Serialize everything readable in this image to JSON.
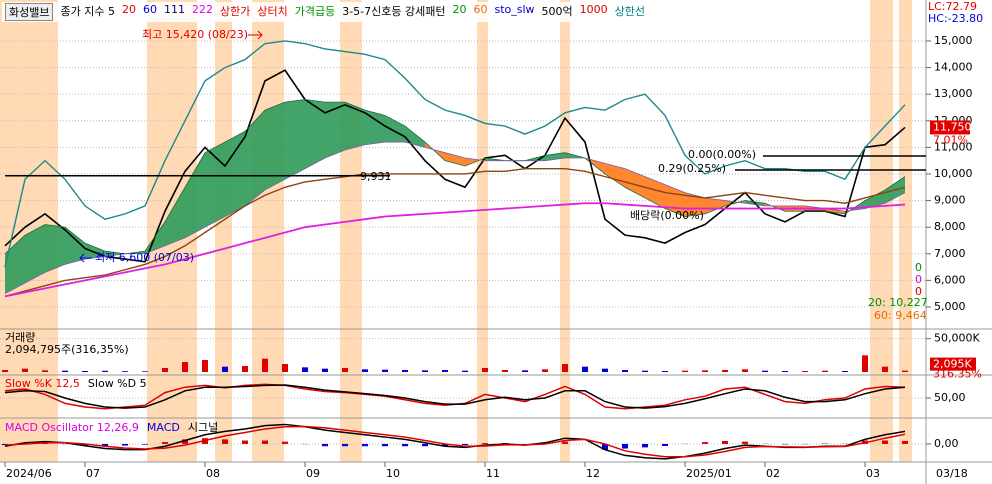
{
  "legend": [
    {
      "text": "화성밸브",
      "color": "#000000"
    },
    {
      "text": "종가 지수 5",
      "color": "#000000"
    },
    {
      "text": "20",
      "color": "#e00000"
    },
    {
      "text": "60",
      "color": "#0000e0"
    },
    {
      "text": "111",
      "color": "#00007f"
    },
    {
      "text": "222",
      "color": "#e000e0"
    },
    {
      "text": "상한가",
      "color": "#e00000"
    },
    {
      "text": "상터치",
      "color": "#e00000"
    },
    {
      "text": "가격급등",
      "color": "#009000"
    },
    {
      "text": "3-5-7신호등 강세패턴",
      "color": "#000000"
    },
    {
      "text": "20",
      "color": "#009000"
    },
    {
      "text": "60",
      "color": "#e07000"
    },
    {
      "text": "sto_slw",
      "color": "#0000c0"
    },
    {
      "text": "500억",
      "color": "#000000"
    },
    {
      "text": "1000",
      "color": "#e00000"
    },
    {
      "text": "상한선",
      "color": "#008080"
    }
  ],
  "chart_data": [
    {
      "type": "line",
      "categories": [
        "2024/06",
        null,
        null,
        null,
        "07",
        null,
        null,
        null,
        null,
        null,
        "08",
        null,
        null,
        null,
        null,
        "09",
        null,
        null,
        null,
        "10",
        null,
        null,
        null,
        null,
        "11",
        null,
        null,
        null,
        null,
        "12",
        null,
        null,
        null,
        null,
        "2025/01",
        null,
        null,
        null,
        "02",
        null,
        null,
        null,
        null,
        "03",
        null,
        null
      ],
      "last_date": "03/18",
      "ylim": [
        4210,
        16540
      ],
      "yticks": [
        {
          "value": 15000,
          "label": "15,000"
        },
        {
          "value": 14000,
          "label": "14,000"
        },
        {
          "value": 13000,
          "label": "13,000"
        },
        {
          "value": 12000,
          "label": "12,000"
        },
        {
          "value": 11000,
          "label": "11,000"
        },
        {
          "value": 10000,
          "label": "10,000"
        },
        {
          "value": 9000,
          "label": "9,000"
        },
        {
          "value": 8000,
          "label": "8,000"
        },
        {
          "value": 7000,
          "label": "7,000"
        },
        {
          "value": 6000,
          "label": "6,000"
        },
        {
          "value": 5000,
          "label": "5,000"
        }
      ],
      "grid": true,
      "cloud_colors": [
        "#2f9a5a",
        "#ff7a1a"
      ],
      "series": [
        {
          "color": "#000000",
          "values": [
            7300,
            8000,
            8500,
            7900,
            7200,
            6900,
            6800,
            6700,
            8600,
            10100,
            11000,
            10300,
            11400,
            13500,
            13900,
            12800,
            12300,
            12600,
            12300,
            11800,
            11400,
            10500,
            9800,
            9500,
            10600,
            10700,
            10200,
            10700,
            12100,
            11200,
            8300,
            7700,
            7600,
            7400,
            7800,
            8100,
            8700,
            9300,
            8500,
            8200,
            8600,
            8600,
            8400,
            11000,
            11100,
            11750
          ]
        },
        {
          "color": "#1e6b3a",
          "values": [
            7000,
            7700,
            8100,
            8000,
            7400,
            7100,
            7000,
            7100,
            8200,
            9500,
            10800,
            11200,
            11600,
            12400,
            12700,
            12800,
            12700,
            12700,
            12400,
            12200,
            11800,
            11200,
            10500,
            10300,
            10600,
            10500,
            10500,
            10700,
            10800,
            10600,
            10000,
            9500,
            9100,
            8700,
            8400,
            8500,
            8800,
            9000,
            8900,
            8600,
            8600,
            8600,
            8500,
            9000,
            9400,
            9900
          ]
        },
        {
          "color": "#7b5ea8",
          "values": [
            5500,
            5900,
            6300,
            6600,
            6800,
            6900,
            7000,
            7000,
            7300,
            7600,
            8000,
            8400,
            8800,
            9400,
            9800,
            10200,
            10600,
            10900,
            11100,
            11200,
            11200,
            11000,
            10800,
            10600,
            10500,
            10500,
            10500,
            10500,
            10600,
            10600,
            10400,
            10200,
            9900,
            9600,
            9300,
            9100,
            9000,
            8900,
            8800,
            8800,
            8800,
            8700,
            8600,
            8700,
            8900,
            9300
          ]
        },
        {
          "color": "#8b4513",
          "values": [
            5400,
            5600,
            5800,
            6000,
            6100,
            6200,
            6400,
            6600,
            6900,
            7300,
            7800,
            8300,
            8800,
            9200,
            9500,
            9700,
            9800,
            9900,
            10000,
            10000,
            10000,
            10000,
            10000,
            10000,
            10100,
            10100,
            10200,
            10200,
            10200,
            10100,
            9900,
            9700,
            9500,
            9300,
            9200,
            9100,
            9200,
            9300,
            9200,
            9100,
            9000,
            9000,
            8900,
            9100,
            9300,
            9500
          ]
        },
        {
          "color": "#e020e0",
          "values": [
            5400,
            5550,
            5700,
            5850,
            6000,
            6150,
            6300,
            6450,
            6600,
            6800,
            7000,
            7200,
            7400,
            7600,
            7800,
            8000,
            8100,
            8200,
            8300,
            8400,
            8450,
            8500,
            8550,
            8600,
            8650,
            8700,
            8750,
            8800,
            8850,
            8900,
            8900,
            8850,
            8800,
            8750,
            8700,
            8700,
            8700,
            8700,
            8700,
            8700,
            8700,
            8700,
            8700,
            8750,
            8800,
            8850
          ]
        },
        {
          "color": "#1a8a8a",
          "values": [
            6500,
            9800,
            10500,
            9800,
            8800,
            8300,
            8500,
            8800,
            10500,
            12000,
            13500,
            14000,
            14300,
            14900,
            15000,
            14900,
            14700,
            14600,
            14500,
            14300,
            13600,
            12800,
            12400,
            12200,
            11900,
            11800,
            11500,
            11800,
            12300,
            12500,
            12400,
            12800,
            13000,
            12200,
            10700,
            10000,
            10300,
            10500,
            10200,
            10200,
            10100,
            10100,
            9800,
            11000,
            11800,
            12600
          ]
        }
      ],
      "reference_line": {
        "value": 9931,
        "label": "9,931"
      },
      "price_tag": {
        "value": 11750,
        "label": "11,750",
        "change": "7.01%"
      },
      "annotations": [
        {
          "text": "LC:72.79",
          "color": "#e00000"
        },
        {
          "text": "HC:-23.80",
          "color": "#0000e0"
        },
        {
          "text": "최고 15,420 (08/23)",
          "color": "#e00000"
        },
        {
          "text": "최저 6,600 (07/03)",
          "color": "#0000e0"
        },
        {
          "text": "0.00(0.00%)",
          "color": "#000000"
        },
        {
          "text": "0.29(0.25%)",
          "color": "#000000"
        },
        {
          "text": "배당락(0.00%)",
          "color": "#000000"
        },
        {
          "text": "0",
          "color": "#009000"
        },
        {
          "text": "0",
          "color": "#e000e0"
        },
        {
          "text": "0",
          "color": "#e00000"
        },
        {
          "text": "20: 10,227",
          "color": "#009000"
        },
        {
          "text": "60: 9,464",
          "color": "#e07000"
        }
      ]
    },
    {
      "type": "bar",
      "title": "거래량",
      "subtitle": "2,094,795주(316,35%)",
      "ylim": [
        0,
        60000
      ],
      "yticks": [
        {
          "value": 50000,
          "label": "50,000K"
        }
      ],
      "last_tag": {
        "value": 2095,
        "label": "2,095K",
        "change": "316.35%"
      },
      "up_color": "#e00000",
      "down_color": "#0000e0",
      "values": [
        3000,
        5000,
        2500,
        2000,
        1500,
        1800,
        1200,
        1000,
        6000,
        15000,
        18000,
        8000,
        9000,
        20000,
        12000,
        7000,
        5000,
        6000,
        4000,
        3500,
        3000,
        2500,
        3000,
        2000,
        6000,
        3000,
        2500,
        4000,
        12000,
        8000,
        5000,
        3000,
        2000,
        1500,
        2000,
        2500,
        3000,
        4000,
        2000,
        1500,
        1500,
        2000,
        1500,
        25000,
        8000,
        2095
      ]
    },
    {
      "type": "line",
      "ylim": [
        0,
        100
      ],
      "yticks": [
        {
          "value": 50,
          "label": "50,00"
        }
      ],
      "series": [
        {
          "name": "Slow %K 12,5",
          "color": "#e00000",
          "values": [
            70,
            75,
            60,
            35,
            25,
            20,
            25,
            30,
            65,
            80,
            85,
            78,
            85,
            88,
            85,
            75,
            68,
            65,
            60,
            55,
            45,
            35,
            30,
            35,
            60,
            50,
            40,
            60,
            82,
            60,
            25,
            20,
            25,
            30,
            45,
            55,
            75,
            80,
            60,
            40,
            35,
            45,
            50,
            75,
            82,
            80
          ]
        },
        {
          "name": "Slow %D 5",
          "color": "#000000",
          "values": [
            65,
            70,
            68,
            50,
            35,
            25,
            22,
            25,
            45,
            70,
            80,
            80,
            82,
            85,
            86,
            80,
            72,
            67,
            62,
            57,
            50,
            40,
            33,
            33,
            45,
            52,
            45,
            50,
            70,
            70,
            40,
            25,
            22,
            26,
            35,
            48,
            62,
            75,
            70,
            52,
            40,
            40,
            45,
            62,
            75,
            80
          ]
        }
      ]
    },
    {
      "type": "combo",
      "ylim": [
        -700,
        1000
      ],
      "yticks": [
        {
          "value": 0,
          "label": "0,00"
        }
      ],
      "series": [
        {
          "name": "MACD Oscillator 12,26,9",
          "type": "bar",
          "color": "#e00000",
          "neg_color": "#0000e0",
          "values": [
            -50,
            50,
            50,
            -10,
            -80,
            -100,
            -70,
            -30,
            80,
            200,
            250,
            200,
            150,
            150,
            100,
            -10,
            -100,
            -100,
            -100,
            -100,
            -100,
            -100,
            -100,
            -50,
            40,
            40,
            -10,
            50,
            100,
            0,
            -250,
            -200,
            -150,
            -90,
            10,
            80,
            130,
            100,
            10,
            -20,
            -10,
            20,
            10,
            150,
            150,
            130
          ]
        },
        {
          "name": "MACD",
          "type": "line",
          "color": "#000000",
          "values": [
            -100,
            50,
            100,
            50,
            -80,
            -200,
            -250,
            -250,
            -100,
            150,
            400,
            550,
            650,
            800,
            850,
            750,
            600,
            500,
            400,
            300,
            200,
            50,
            -100,
            -150,
            -50,
            0,
            -50,
            50,
            250,
            200,
            -250,
            -500,
            -600,
            -650,
            -550,
            -400,
            -200,
            -50,
            -100,
            -150,
            -150,
            -100,
            -100,
            200,
            400,
            550
          ]
        },
        {
          "name": "시그널",
          "type": "line",
          "color": "#e00000",
          "values": [
            -50,
            0,
            50,
            60,
            0,
            -100,
            -180,
            -220,
            -180,
            -50,
            150,
            350,
            500,
            650,
            750,
            760,
            700,
            600,
            500,
            400,
            300,
            150,
            0,
            -100,
            -90,
            -40,
            -40,
            0,
            150,
            200,
            0,
            -300,
            -450,
            -560,
            -560,
            -480,
            -330,
            -150,
            -110,
            -130,
            -140,
            -120,
            -110,
            50,
            250,
            420
          ]
        }
      ]
    }
  ]
}
